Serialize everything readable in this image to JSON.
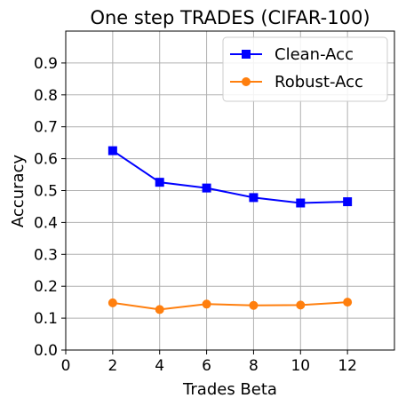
{
  "chart_data": {
    "type": "line",
    "title": "One step TRADES (CIFAR-100)",
    "xlabel": "Trades Beta",
    "ylabel": "Accuracy",
    "xlim": [
      0,
      14
    ],
    "ylim": [
      0,
      1.0
    ],
    "xticks": [
      0,
      2,
      4,
      6,
      8,
      10,
      12
    ],
    "yticks": [
      0.0,
      0.1,
      0.2,
      0.3,
      0.4,
      0.5,
      0.6,
      0.7,
      0.8,
      0.9
    ],
    "grid": true,
    "legend_position": "top-right",
    "x": [
      2,
      4,
      6,
      8,
      10,
      12
    ],
    "series": [
      {
        "name": "Clean-Acc",
        "values": [
          0.625,
          0.526,
          0.508,
          0.478,
          0.461,
          0.465
        ],
        "color": "#0000ff",
        "marker": "square"
      },
      {
        "name": "Robust-Acc",
        "values": [
          0.148,
          0.127,
          0.144,
          0.14,
          0.141,
          0.15
        ],
        "color": "#ff7f0e",
        "marker": "circle"
      }
    ]
  }
}
